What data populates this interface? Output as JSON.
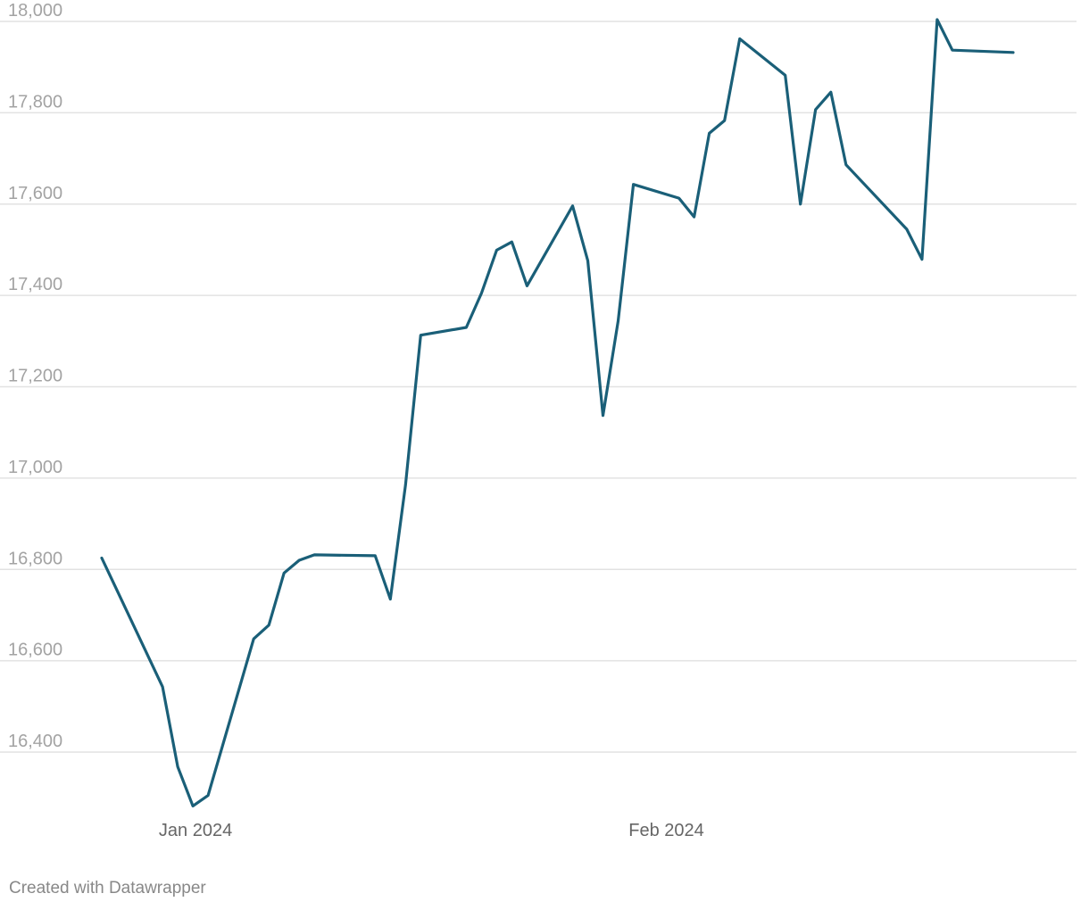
{
  "colors": {
    "line": "#1a5f78",
    "grid": "#e2e2e2",
    "ytick": "#a3a3a3",
    "xtick": "#666666",
    "credit": "#888888"
  },
  "credit": "Created with Datawrapper",
  "chart_data": {
    "type": "line",
    "title": "",
    "xlabel": "",
    "ylabel": "",
    "ylim": [
      16300,
      18000
    ],
    "grid": true,
    "yticks": [
      16400,
      16600,
      16800,
      17000,
      17200,
      17400,
      17600,
      17800,
      18000
    ],
    "ytick_labels": [
      "16,400",
      "16,600",
      "16,800",
      "17,000",
      "17,200",
      "17,400",
      "17,600",
      "17,800",
      "18,000"
    ],
    "xticks": [
      {
        "date": "2024-01-01",
        "label": "Jan 2024"
      },
      {
        "date": "2024-02-01",
        "label": "Feb 2024"
      }
    ],
    "xlim": [
      "2023-12-29",
      "2024-03-01"
    ],
    "series": [
      {
        "color": "#1a5f78",
        "points": [
          [
            "2023-12-29",
            16825
          ],
          [
            "2024-01-02",
            16543
          ],
          [
            "2024-01-03",
            16368
          ],
          [
            "2024-01-04",
            16282
          ],
          [
            "2024-01-05",
            16305
          ],
          [
            "2024-01-08",
            16648
          ],
          [
            "2024-01-09",
            16678
          ],
          [
            "2024-01-10",
            16792
          ],
          [
            "2024-01-11",
            16820
          ],
          [
            "2024-01-12",
            16832
          ],
          [
            "2024-01-16",
            16830
          ],
          [
            "2024-01-17",
            16735
          ],
          [
            "2024-01-18",
            16985
          ],
          [
            "2024-01-19",
            17313
          ],
          [
            "2024-01-22",
            17330
          ],
          [
            "2024-01-23",
            17405
          ],
          [
            "2024-01-24",
            17499
          ],
          [
            "2024-01-25",
            17517
          ],
          [
            "2024-01-26",
            17421
          ],
          [
            "2024-01-29",
            17596
          ],
          [
            "2024-01-30",
            17476
          ],
          [
            "2024-01-31",
            17137
          ],
          [
            "2024-02-01",
            17344
          ],
          [
            "2024-02-02",
            17643
          ],
          [
            "2024-02-05",
            17613
          ],
          [
            "2024-02-06",
            17572
          ],
          [
            "2024-02-07",
            17755
          ],
          [
            "2024-02-08",
            17783
          ],
          [
            "2024-02-09",
            17962
          ],
          [
            "2024-02-12",
            17882
          ],
          [
            "2024-02-13",
            17600
          ],
          [
            "2024-02-14",
            17807
          ],
          [
            "2024-02-15",
            17845
          ],
          [
            "2024-02-16",
            17686
          ],
          [
            "2024-02-20",
            17545
          ],
          [
            "2024-02-21",
            17479
          ],
          [
            "2024-02-22",
            18004
          ],
          [
            "2024-02-23",
            17937
          ],
          [
            "2024-02-27",
            17932
          ]
        ]
      }
    ]
  }
}
